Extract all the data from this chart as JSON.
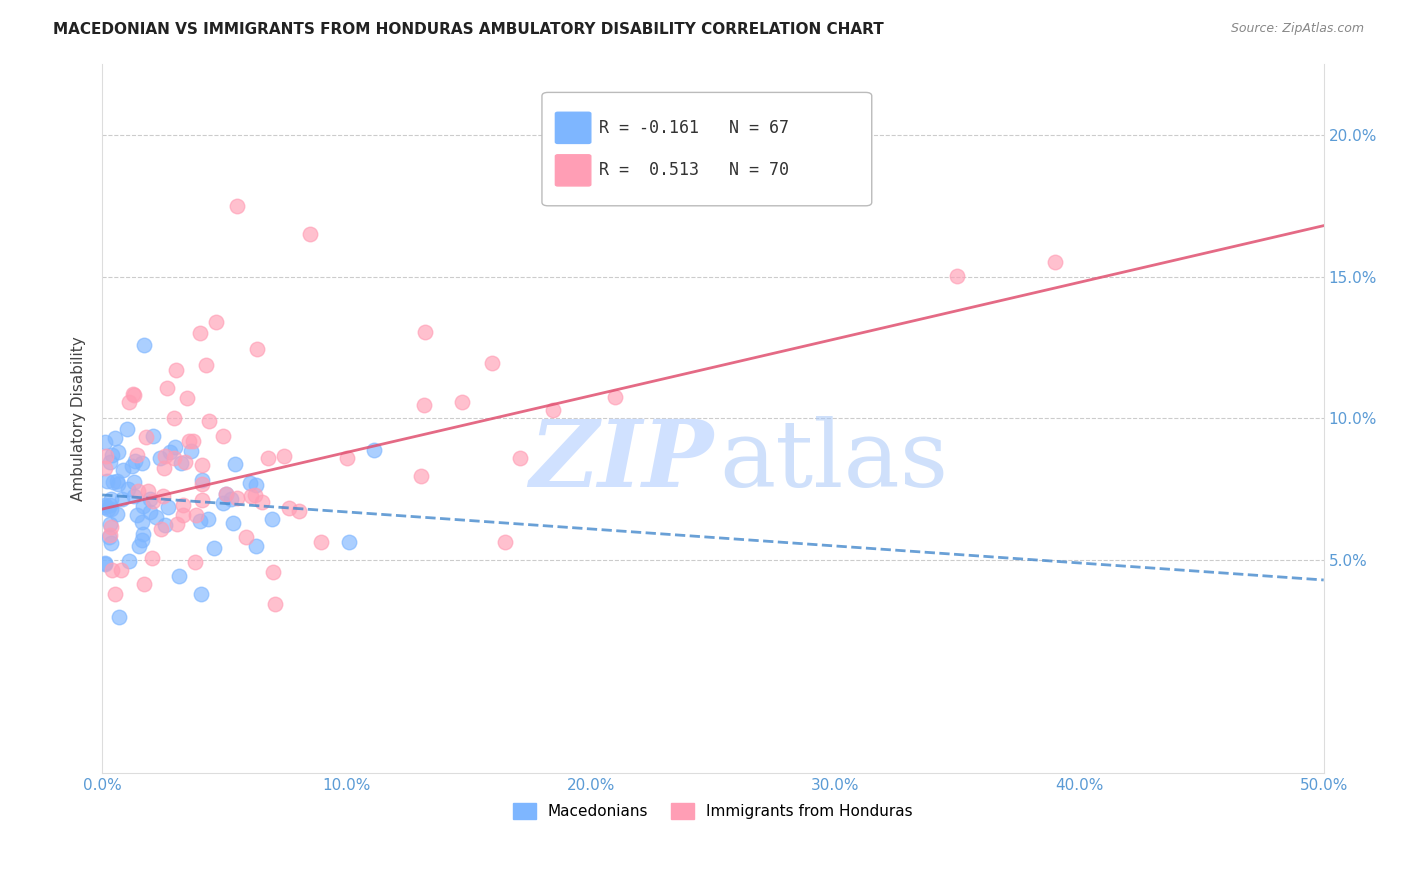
{
  "title": "MACEDONIAN VS IMMIGRANTS FROM HONDURAS AMBULATORY DISABILITY CORRELATION CHART",
  "source": "Source: ZipAtlas.com",
  "ylabel": "Ambulatory Disability",
  "xlim": [
    0.0,
    0.5
  ],
  "ylim": [
    -0.025,
    0.225
  ],
  "yticks": [
    0.05,
    0.1,
    0.15,
    0.2
  ],
  "ytick_labels": [
    "5.0%",
    "10.0%",
    "15.0%",
    "20.0%"
  ],
  "xticks": [
    0.0,
    0.1,
    0.2,
    0.3,
    0.4,
    0.5
  ],
  "xtick_labels": [
    "0.0%",
    "10.0%",
    "20.0%",
    "30.0%",
    "40.0%",
    "50.0%"
  ],
  "macedonian_color": "#7EB6FF",
  "honduran_color": "#FF9EB5",
  "macedonian_edge": "#5A9AE8",
  "honduran_edge": "#E87090",
  "macedonian_R": -0.161,
  "macedonian_N": 67,
  "honduran_R": 0.513,
  "honduran_N": 70,
  "watermark_zip_color": "#C8DCFF",
  "watermark_atlas_color": "#A8C8F8",
  "legend_label_macedonian": "Macedonians",
  "legend_label_honduran": "Immigrants from Honduras",
  "mac_reg_color": "#4488CC",
  "hon_reg_color": "#E05070",
  "mac_reg_intercept": 0.073,
  "mac_reg_slope": -0.06,
  "hon_reg_intercept": 0.068,
  "hon_reg_slope": 0.2
}
